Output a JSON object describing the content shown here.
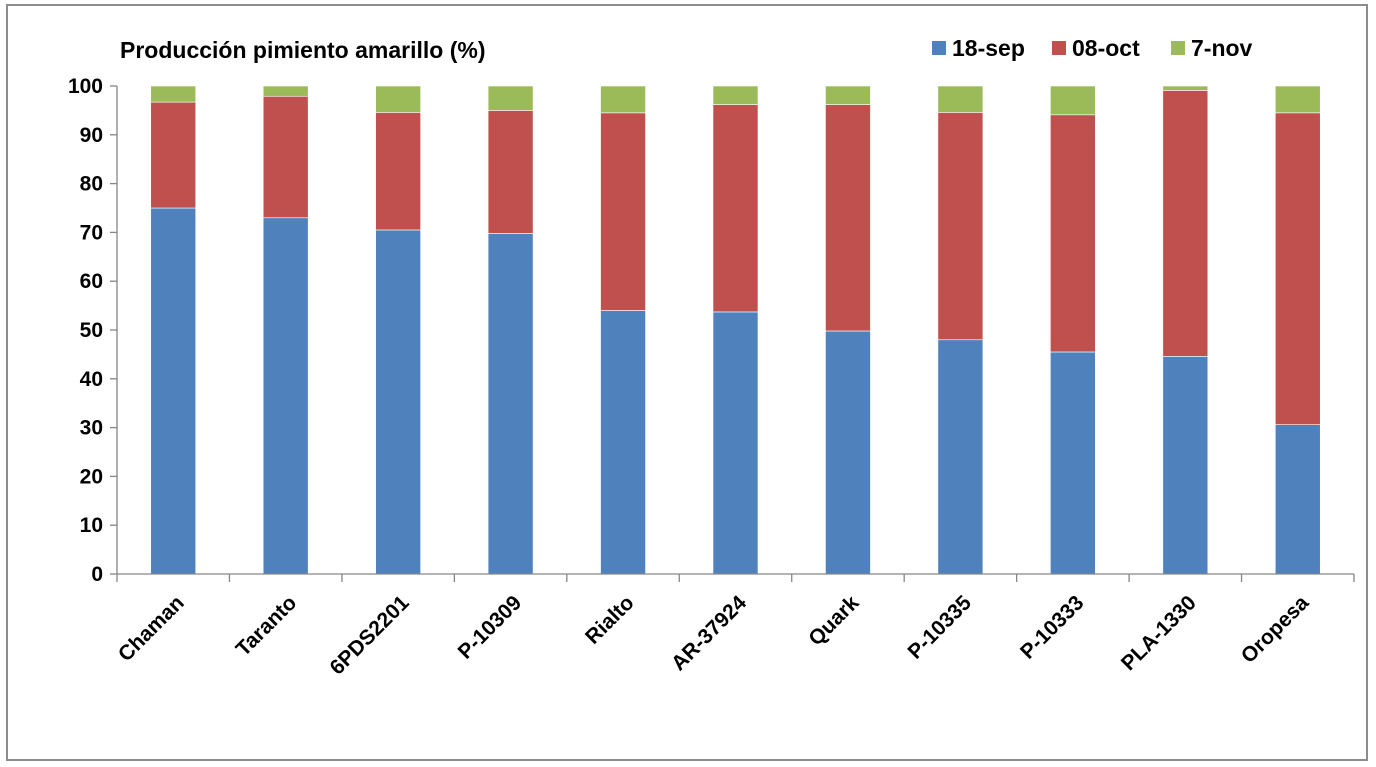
{
  "chart_data": {
    "type": "bar",
    "stacked": true,
    "title": "Producción pimiento amarillo  (%)",
    "xlabel": "",
    "ylabel": "",
    "ylim": [
      0,
      100
    ],
    "yticks": [
      0,
      10,
      20,
      30,
      40,
      50,
      60,
      70,
      80,
      90,
      100
    ],
    "grid": false,
    "legend_position": "top-right",
    "categories": [
      "Chaman",
      "Taranto",
      "6PDS2201",
      "P-10309",
      "Rialto",
      "AR-37924",
      "Quark",
      "P-10335",
      "P-10333",
      "PLA-1330",
      "Oropesa"
    ],
    "series": [
      {
        "name": "18-sep",
        "color": "#4f81bd",
        "values": [
          75,
          73,
          70.5,
          69.8,
          54,
          53.7,
          49.8,
          48,
          45.5,
          44.6,
          30.6
        ]
      },
      {
        "name": "08-oct",
        "color": "#c0504d",
        "values": [
          21.7,
          24.9,
          24.1,
          25.2,
          40.5,
          42.5,
          46.4,
          46.6,
          48.6,
          54.5,
          63.9
        ]
      },
      {
        "name": "7-nov",
        "color": "#9bbb59",
        "values": [
          3.3,
          2.1,
          5.4,
          5,
          5.5,
          3.8,
          3.8,
          5.4,
          5.9,
          0.9,
          5.5
        ]
      }
    ]
  }
}
